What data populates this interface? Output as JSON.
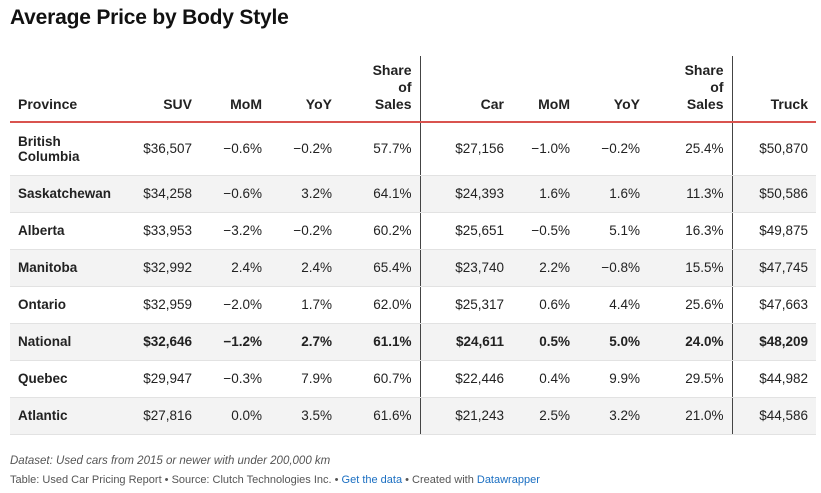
{
  "title": "Average Price by Body Style",
  "chart_data": {
    "type": "table",
    "title": "Average Price by Body Style",
    "columns": [
      "Province",
      "SUV",
      "MoM",
      "YoY",
      "Share of Sales",
      "Car",
      "MoM",
      "YoY",
      "Share of Sales",
      "Truck"
    ],
    "rows": [
      [
        "British Columbia",
        "$36,507",
        "−0.6%",
        "−0.2%",
        "57.7%",
        "$27,156",
        "−1.0%",
        "−0.2%",
        "25.4%",
        "$50,870"
      ],
      [
        "Saskatchewan",
        "$34,258",
        "−0.6%",
        "3.2%",
        "64.1%",
        "$24,393",
        "1.6%",
        "1.6%",
        "11.3%",
        "$50,586"
      ],
      [
        "Alberta",
        "$33,953",
        "−3.2%",
        "−0.2%",
        "60.2%",
        "$25,651",
        "−0.5%",
        "5.1%",
        "16.3%",
        "$49,875"
      ],
      [
        "Manitoba",
        "$32,992",
        "2.4%",
        "2.4%",
        "65.4%",
        "$23,740",
        "2.2%",
        "−0.8%",
        "15.5%",
        "$47,745"
      ],
      [
        "Ontario",
        "$32,959",
        "−2.0%",
        "1.7%",
        "62.0%",
        "$25,317",
        "0.6%",
        "4.4%",
        "25.6%",
        "$47,663"
      ],
      [
        "National",
        "$32,646",
        "−1.2%",
        "2.7%",
        "61.1%",
        "$24,611",
        "0.5%",
        "5.0%",
        "24.0%",
        "$48,209"
      ],
      [
        "Quebec",
        "$29,947",
        "−0.3%",
        "7.9%",
        "60.7%",
        "$22,446",
        "0.4%",
        "9.9%",
        "29.5%",
        "$44,982"
      ],
      [
        "Atlantic",
        "$27,816",
        "0.0%",
        "3.5%",
        "61.6%",
        "$21,243",
        "2.5%",
        "3.2%",
        "21.0%",
        "$44,586"
      ]
    ]
  },
  "footer": {
    "note": "Dataset: Used cars from 2015 or newer with under 200,000 km",
    "source_prefix": "Table: Used Car Pricing Report • Source: Clutch Technologies Inc. • ",
    "get_data": "Get the data",
    "created_prefix": " • Created with ",
    "datawrapper": "Datawrapper"
  },
  "colors": {
    "accent_rule": "#d9534f",
    "link": "#1b6fc2",
    "shade": "#f3f3f3"
  }
}
